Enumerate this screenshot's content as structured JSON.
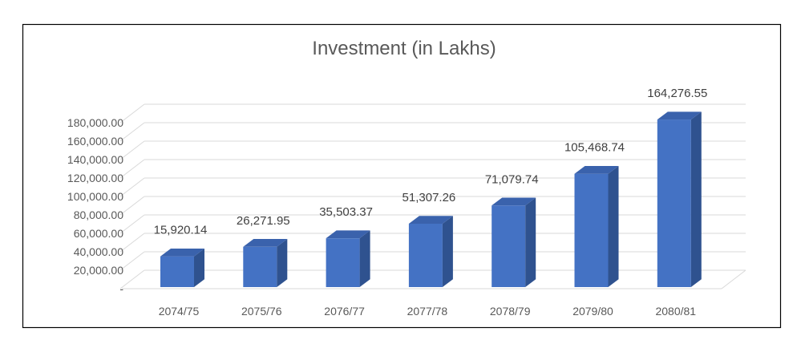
{
  "chart_data": {
    "type": "bar",
    "title": "Investment (in Lakhs)",
    "xlabel": "",
    "ylabel": "",
    "categories": [
      "2074/75",
      "2075/76",
      "2076/77",
      "2077/78",
      "2078/79",
      "2079/80",
      "2080/81"
    ],
    "values": [
      15920.14,
      26271.95,
      35503.37,
      51307.26,
      71079.74,
      105468.74,
      164276.55
    ],
    "data_labels": [
      "15,920.14",
      "26,271.95",
      "35,503.37",
      "51,307.26",
      "71,079.74",
      "105,468.74",
      "164,276.55"
    ],
    "y_ticks": [
      0,
      20000,
      40000,
      60000,
      80000,
      100000,
      120000,
      140000,
      160000,
      180000
    ],
    "y_tick_labels": [
      "-",
      "20,000.00",
      "40,000.00",
      "60,000.00",
      "80,000.00",
      "100,000.00",
      "120,000.00",
      "140,000.00",
      "160,000.00",
      "180,000.00"
    ],
    "ylim": [
      0,
      180000
    ],
    "grid": true,
    "legend": "none",
    "style": "3d-column",
    "colors": {
      "bar_front": "#4472C4",
      "bar_side": "#2F528F",
      "bar_top": "#3A62AC",
      "grid": "#D9D9D9",
      "text": "#595959",
      "frame": "#000000"
    }
  }
}
